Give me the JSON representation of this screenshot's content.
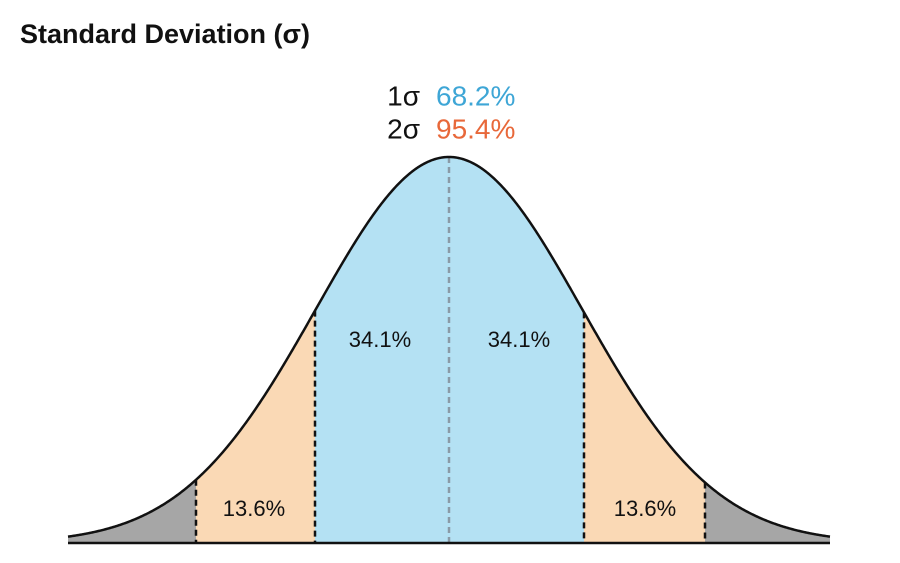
{
  "title": "Standard Deviation (σ)",
  "summary": [
    {
      "label": "1σ",
      "value": "68.2%"
    },
    {
      "label": "2σ",
      "value": "95.4%"
    }
  ],
  "regions": [
    "13.6%",
    "34.1%",
    "34.1%",
    "13.6%"
  ]
}
